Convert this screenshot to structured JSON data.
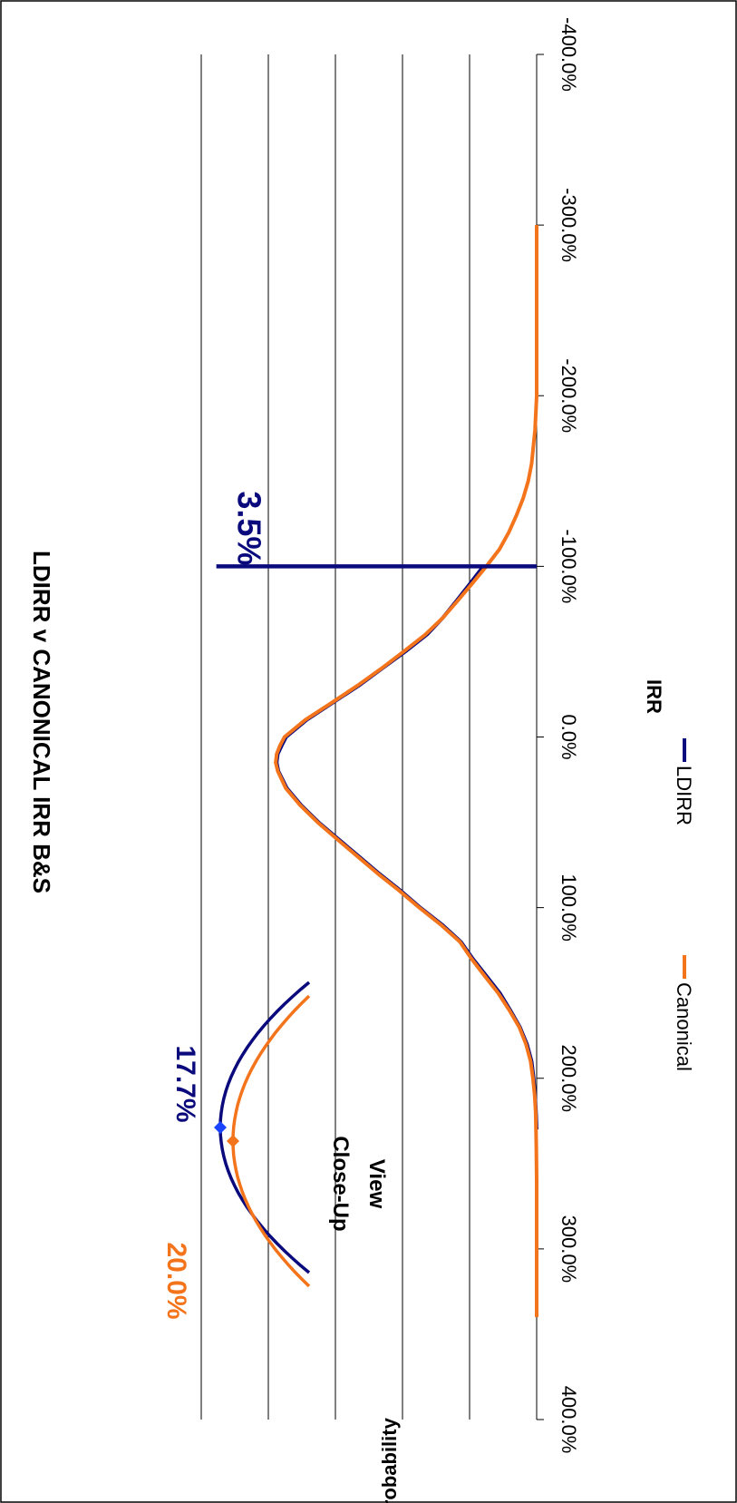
{
  "chart_data": {
    "type": "line",
    "title": "LDIRR v CANONICAL IRR  B&S",
    "xlabel": "IRR",
    "ylabel": "Probability",
    "xlim": [
      -4.0,
      4.0
    ],
    "ylim": [
      0,
      1.0
    ],
    "x_ticks": [
      -4.0,
      -3.0,
      -2.0,
      -1.0,
      0.0,
      1.0,
      2.0,
      3.0,
      4.0
    ],
    "x_tick_labels": [
      "-400.0%",
      "-300.0%",
      "-200.0%",
      "-100.0%",
      "0.0%",
      "100.0%",
      "200.0%",
      "300.0%",
      "400.0%"
    ],
    "y_gridlines": [
      0.2,
      0.4,
      0.6,
      0.8,
      1.0
    ],
    "grid": true,
    "legend_position": "bottom",
    "orientation": "rotated 90 degrees clockwise",
    "series": [
      {
        "name": "LDIRR",
        "color": "#0a0a7d",
        "x": [
          -1.0,
          -0.95,
          -0.9,
          -0.8,
          -0.7,
          -0.6,
          -0.5,
          -0.4,
          -0.3,
          -0.2,
          -0.1,
          0.0,
          0.05,
          0.1,
          0.15,
          0.2,
          0.3,
          0.4,
          0.5,
          0.6,
          0.7,
          0.8,
          0.9,
          1.0,
          1.1,
          1.2,
          1.3,
          1.4,
          1.5,
          1.6,
          1.7,
          1.8,
          1.9,
          2.0,
          2.1,
          2.2,
          2.3
        ],
        "y": [
          0.159,
          0.179,
          0.198,
          0.238,
          0.279,
          0.327,
          0.392,
          0.462,
          0.531,
          0.609,
          0.686,
          0.747,
          0.76,
          0.772,
          0.775,
          0.77,
          0.745,
          0.702,
          0.65,
          0.59,
          0.53,
          0.47,
          0.406,
          0.347,
          0.282,
          0.226,
          0.19,
          0.15,
          0.11,
          0.079,
          0.05,
          0.029,
          0.015,
          0.009,
          0.005,
          0.002,
          0.0
        ]
      },
      {
        "name": "Canonical",
        "color": "#f4741c",
        "x": [
          -3.0,
          -2.5,
          -2.0,
          -1.8,
          -1.6,
          -1.5,
          -1.4,
          -1.3,
          -1.2,
          -1.1,
          -1.0,
          -0.9,
          -0.8,
          -0.7,
          -0.6,
          -0.5,
          -0.4,
          -0.3,
          -0.2,
          -0.1,
          0.0,
          0.05,
          0.1,
          0.15,
          0.2,
          0.3,
          0.4,
          0.5,
          0.6,
          0.7,
          0.8,
          0.9,
          1.0,
          1.1,
          1.2,
          1.3,
          1.4,
          1.5,
          1.6,
          1.7,
          1.8,
          1.9,
          2.0,
          2.1,
          2.2,
          2.4,
          2.6,
          2.8,
          3.0,
          3.2,
          3.4
        ],
        "y": [
          0.0,
          0.0,
          0.0,
          0.005,
          0.015,
          0.025,
          0.04,
          0.06,
          0.083,
          0.111,
          0.15,
          0.192,
          0.235,
          0.279,
          0.332,
          0.397,
          0.464,
          0.535,
          0.612,
          0.69,
          0.752,
          0.765,
          0.775,
          0.778,
          0.772,
          0.748,
          0.705,
          0.653,
          0.594,
          0.534,
          0.474,
          0.41,
          0.35,
          0.286,
          0.229,
          0.194,
          0.155,
          0.115,
          0.082,
          0.052,
          0.032,
          0.018,
          0.011,
          0.006,
          0.003,
          0.001,
          0.0,
          0.0,
          0.0,
          0.0,
          0.0
        ]
      }
    ],
    "vertical_marker": {
      "x": -1.0,
      "color": "#0a0a7d",
      "label": "3.5%"
    },
    "inset": {
      "title_line1": "Close-Up",
      "title_line2": "View",
      "ldirr_label": "17.7%",
      "canonical_label": "20.0%",
      "ldirr_color": "#0a0a7d",
      "canonical_color": "#f4741c",
      "ldirr_point_color": "#1a44ff",
      "canonical_point_color": "#f4741c"
    }
  }
}
